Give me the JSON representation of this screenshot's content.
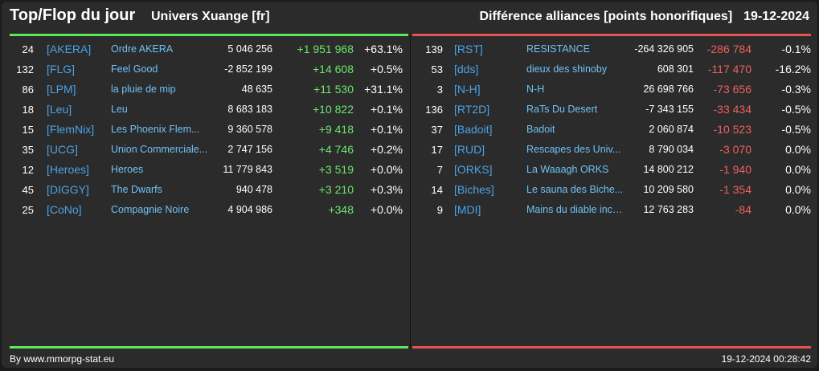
{
  "header": {
    "title": "Top/Flop du jour",
    "subtitle": "Univers Xuange [fr]",
    "right_title": "Différence alliances [points honorifiques]",
    "date": "19-12-2024"
  },
  "colors": {
    "top_accent": "#5ee85e",
    "flop_accent": "#e65252",
    "tag": "#4aa3e6",
    "name": "#6fc1f7",
    "background": "#2b2b2b"
  },
  "top": [
    {
      "rank": "24",
      "tag": "[AKERA]",
      "name": "Ordre AKERA",
      "points": "5 046 256",
      "diff": "+1 951 968",
      "pct": "+63.1%"
    },
    {
      "rank": "132",
      "tag": "[FLG]",
      "name": "Feel Good",
      "points": "-2 852 199",
      "diff": "+14 608",
      "pct": "+0.5%"
    },
    {
      "rank": "86",
      "tag": "[LPM]",
      "name": "la pluie de mip",
      "points": "48 635",
      "diff": "+11 530",
      "pct": "+31.1%"
    },
    {
      "rank": "18",
      "tag": "[Leu]",
      "name": "Leu",
      "points": "8 683 183",
      "diff": "+10 822",
      "pct": "+0.1%"
    },
    {
      "rank": "15",
      "tag": "[FlemNix]",
      "name": "Les Phoenix Flem...",
      "points": "9 360 578",
      "diff": "+9 418",
      "pct": "+0.1%"
    },
    {
      "rank": "35",
      "tag": "[UCG]",
      "name": "Union Commerciale...",
      "points": "2 747 156",
      "diff": "+4 746",
      "pct": "+0.2%"
    },
    {
      "rank": "12",
      "tag": "[Heroes]",
      "name": "Heroes",
      "points": "11 779 843",
      "diff": "+3 519",
      "pct": "+0.0%"
    },
    {
      "rank": "45",
      "tag": "[DIGGY]",
      "name": "The Dwarfs",
      "points": "940 478",
      "diff": "+3 210",
      "pct": "+0.3%"
    },
    {
      "rank": "25",
      "tag": "[CoNo]",
      "name": "Compagnie Noire",
      "points": "4 904 986",
      "diff": "+348",
      "pct": "+0.0%"
    }
  ],
  "flop": [
    {
      "rank": "139",
      "tag": "[RST]",
      "name": "RESISTANCE",
      "points": "-264 326 905",
      "diff": "-286 784",
      "pct": "-0.1%"
    },
    {
      "rank": "53",
      "tag": "[dds]",
      "name": "dieux des shinoby",
      "points": "608 301",
      "diff": "-117 470",
      "pct": "-16.2%"
    },
    {
      "rank": "3",
      "tag": "[N-H]",
      "name": "N-H",
      "points": "26 698 766",
      "diff": "-73 656",
      "pct": "-0.3%"
    },
    {
      "rank": "136",
      "tag": "[RT2D]",
      "name": "RaTs Du Desert",
      "points": "-7 343 155",
      "diff": "-33 434",
      "pct": "-0.5%"
    },
    {
      "rank": "37",
      "tag": "[Badoit]",
      "name": "Badoit",
      "points": "2 060 874",
      "diff": "-10 523",
      "pct": "-0.5%"
    },
    {
      "rank": "17",
      "tag": "[RUD]",
      "name": "Rescapes des Univ...",
      "points": "8 790 034",
      "diff": "-3 070",
      "pct": "0.0%"
    },
    {
      "rank": "7",
      "tag": "[ORKS]",
      "name": "La Waaagh ORKS",
      "points": "14 800 212",
      "diff": "-1 940",
      "pct": "0.0%"
    },
    {
      "rank": "14",
      "tag": "[Biches]",
      "name": "Le sauna des Biche...",
      "points": "10 209 580",
      "diff": "-1 354",
      "pct": "0.0%"
    },
    {
      "rank": "9",
      "tag": "[MDI]",
      "name": "Mains du diable inco...",
      "points": "12 763 283",
      "diff": "-84",
      "pct": "0.0%"
    }
  ],
  "footer": {
    "credit": "By www.mmorpg-stat.eu",
    "timestamp": "19-12-2024 00:28:42"
  }
}
